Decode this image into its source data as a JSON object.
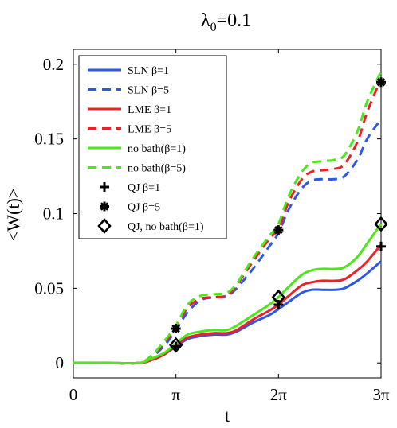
{
  "chart_data": {
    "type": "line",
    "title_main": "λ",
    "title_sub": "0",
    "title_rest": "=0.1",
    "xlabel": "t",
    "ylabel": "<W(t)>",
    "xlim": [
      0,
      9.42478
    ],
    "ylim": [
      -0.01,
      0.21
    ],
    "x_ticks": [
      {
        "value": 0,
        "label": "0"
      },
      {
        "value": 3.14159,
        "label": "π"
      },
      {
        "value": 6.28319,
        "label": "2π"
      },
      {
        "value": 9.42478,
        "label": "3π"
      }
    ],
    "y_ticks": [
      {
        "value": 0,
        "label": "0"
      },
      {
        "value": 0.05,
        "label": "0.05"
      },
      {
        "value": 0.1,
        "label": "0.1"
      },
      {
        "value": 0.15,
        "label": "0.15"
      },
      {
        "value": 0.2,
        "label": "0.2"
      }
    ],
    "grid": false,
    "legend_position": "top-left",
    "series": [
      {
        "name": "SLN β=1",
        "style": "solid",
        "color": "#2f57e6",
        "x": [
          0,
          1.0,
          2.0,
          2.4,
          2.8,
          3.14,
          3.5,
          3.9,
          4.3,
          4.7,
          5.0,
          5.5,
          6.0,
          6.28,
          6.6,
          7.0,
          7.3,
          7.6,
          8.0,
          8.3,
          8.7,
          9.0,
          9.42
        ],
        "y": [
          0,
          0,
          0,
          0.002,
          0.006,
          0.011,
          0.016,
          0.018,
          0.019,
          0.019,
          0.021,
          0.027,
          0.032,
          0.036,
          0.041,
          0.047,
          0.049,
          0.049,
          0.049,
          0.05,
          0.055,
          0.06,
          0.068
        ]
      },
      {
        "name": "SLN β=5",
        "style": "dashed",
        "color": "#2f57e6",
        "x": [
          0,
          1.0,
          2.0,
          2.4,
          2.8,
          3.14,
          3.5,
          3.9,
          4.3,
          4.7,
          5.0,
          5.5,
          6.0,
          6.28,
          6.6,
          7.0,
          7.3,
          7.6,
          8.0,
          8.3,
          8.7,
          9.0,
          9.42
        ],
        "y": [
          0,
          0,
          0,
          0.004,
          0.012,
          0.022,
          0.034,
          0.042,
          0.044,
          0.045,
          0.05,
          0.063,
          0.078,
          0.087,
          0.103,
          0.117,
          0.122,
          0.123,
          0.123,
          0.125,
          0.136,
          0.15,
          0.163
        ]
      },
      {
        "name": "LME β=1",
        "style": "solid",
        "color": "#ec2027",
        "x": [
          0,
          1.0,
          2.0,
          2.4,
          2.8,
          3.14,
          3.5,
          3.9,
          4.3,
          4.7,
          5.0,
          5.5,
          6.0,
          6.28,
          6.6,
          7.0,
          7.3,
          7.6,
          8.0,
          8.3,
          8.7,
          9.0,
          9.42
        ],
        "y": [
          0,
          0,
          0,
          0.002,
          0.006,
          0.012,
          0.017,
          0.019,
          0.02,
          0.02,
          0.022,
          0.029,
          0.035,
          0.039,
          0.045,
          0.052,
          0.054,
          0.055,
          0.055,
          0.056,
          0.062,
          0.068,
          0.079
        ]
      },
      {
        "name": "LME β=5",
        "style": "dashed",
        "color": "#ec2027",
        "x": [
          0,
          1.0,
          2.0,
          2.4,
          2.8,
          3.14,
          3.5,
          3.9,
          4.3,
          4.7,
          5.0,
          5.5,
          6.0,
          6.28,
          6.6,
          7.0,
          7.3,
          7.6,
          8.0,
          8.3,
          8.7,
          9.0,
          9.42
        ],
        "y": [
          0,
          0,
          0,
          0.005,
          0.014,
          0.024,
          0.037,
          0.043,
          0.044,
          0.045,
          0.052,
          0.068,
          0.083,
          0.09,
          0.108,
          0.123,
          0.128,
          0.129,
          0.13,
          0.133,
          0.148,
          0.168,
          0.19
        ]
      },
      {
        "name": "no bath(β=1)",
        "style": "solid",
        "color": "#4de61a",
        "x": [
          0,
          1.0,
          2.0,
          2.4,
          2.8,
          3.14,
          3.5,
          3.9,
          4.3,
          4.7,
          5.0,
          5.5,
          6.0,
          6.28,
          6.6,
          7.0,
          7.3,
          7.6,
          8.0,
          8.3,
          8.7,
          9.0,
          9.42
        ],
        "y": [
          0,
          0,
          0,
          0.003,
          0.007,
          0.013,
          0.019,
          0.021,
          0.022,
          0.022,
          0.025,
          0.032,
          0.039,
          0.044,
          0.051,
          0.059,
          0.062,
          0.063,
          0.063,
          0.064,
          0.071,
          0.08,
          0.093
        ]
      },
      {
        "name": "no bath(β=5)",
        "style": "dashed",
        "color": "#4de61a",
        "x": [
          0,
          1.0,
          2.0,
          2.4,
          2.8,
          3.14,
          3.5,
          3.9,
          4.3,
          4.7,
          5.0,
          5.5,
          6.0,
          6.28,
          6.6,
          7.0,
          7.3,
          7.6,
          8.0,
          8.3,
          8.7,
          9.0,
          9.42
        ],
        "y": [
          0,
          0,
          0,
          0.005,
          0.015,
          0.025,
          0.039,
          0.045,
          0.046,
          0.047,
          0.053,
          0.07,
          0.085,
          0.093,
          0.112,
          0.128,
          0.134,
          0.135,
          0.136,
          0.139,
          0.155,
          0.175,
          0.195
        ]
      }
    ],
    "markers": [
      {
        "name": "QJ β=1",
        "symbol": "plus",
        "x": [
          3.14159,
          6.28319,
          9.42478
        ],
        "y": [
          0.011,
          0.039,
          0.078
        ]
      },
      {
        "name": "QJ β=5",
        "symbol": "asterisk",
        "x": [
          3.14159,
          6.28319,
          9.42478
        ],
        "y": [
          0.023,
          0.089,
          0.188
        ]
      },
      {
        "name": "QJ, no bath(β=1)",
        "symbol": "diamond",
        "x": [
          3.14159,
          6.28319,
          9.42478
        ],
        "y": [
          0.012,
          0.044,
          0.093
        ]
      }
    ]
  }
}
